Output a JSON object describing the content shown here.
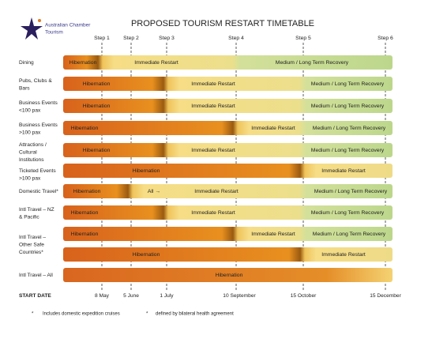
{
  "logo": {
    "line1": "Australian Chamber",
    "line2": "Tourism"
  },
  "title": "PROPOSED TOURISM RESTART TIMETABLE",
  "steps": [
    "Step 1",
    "Step 2",
    "Step 3",
    "Step 4",
    "Step 5",
    "Step 6"
  ],
  "start_date_label": "START DATE",
  "dates": [
    "8 May",
    "5 June",
    "1 July",
    "10 September",
    "15 October",
    "15 December"
  ],
  "rows": [
    {
      "label": [
        "Dining"
      ],
      "bars": [
        [
          "Hibernation",
          "Immediate Restart",
          "Medium / Long Term Recovery"
        ]
      ]
    },
    {
      "label": [
        "Pubs, Clubs &",
        "Bars"
      ],
      "bars": [
        [
          "Hibernation",
          "Immediate Restart",
          "Medium / Long Term Recovery"
        ]
      ]
    },
    {
      "label": [
        "Business Events",
        "<100 pax"
      ],
      "bars": [
        [
          "Hibernation",
          "Immediate Restart",
          "Medium / Long Term Recovery"
        ]
      ]
    },
    {
      "label": [
        "Business Events",
        ">100 pax"
      ],
      "bars": [
        [
          "Hibernation",
          "Immediate Restart",
          "Medium / Long Term Recovery"
        ]
      ]
    },
    {
      "label": [
        "Attractions /",
        "Cultural",
        "Institutions"
      ],
      "bars": [
        [
          "Hibernation",
          "Immediate Restart",
          "Medium / Long Term Recovery"
        ]
      ]
    },
    {
      "label": [
        "Ticketed Events",
        ">100 pax"
      ],
      "bars": [
        [
          "Hibernation",
          "Immediate Restart"
        ]
      ]
    },
    {
      "label": [
        "Domestic Travel*"
      ],
      "bars": [
        [
          "Hibernation",
          "All →",
          "Immediate Restart",
          "Medium / Long Term Recovery"
        ]
      ]
    },
    {
      "label": [
        "Intl Travel – NZ",
        "& Pacific"
      ],
      "bars": [
        [
          "Hibernation",
          "Immediate Restart",
          "Medium / Long Term Recovery"
        ]
      ]
    },
    {
      "label": [
        "Intl Travel –",
        "Other Safe",
        "Countries*"
      ],
      "bars": [
        [
          "Hibernation",
          "Immediate Restart",
          "Medium / Long Term Recovery"
        ],
        [
          "Hibernation",
          "Immediate Restart"
        ]
      ]
    },
    {
      "label": [
        "Intl Travel – All"
      ],
      "bars": [
        [
          "Hibernation"
        ]
      ]
    }
  ],
  "footnotes": [
    {
      "mark": "*",
      "text": "Includes domestic expedition cruises"
    },
    {
      "mark": "*",
      "text": "defined by bilateral health agreement"
    }
  ]
}
